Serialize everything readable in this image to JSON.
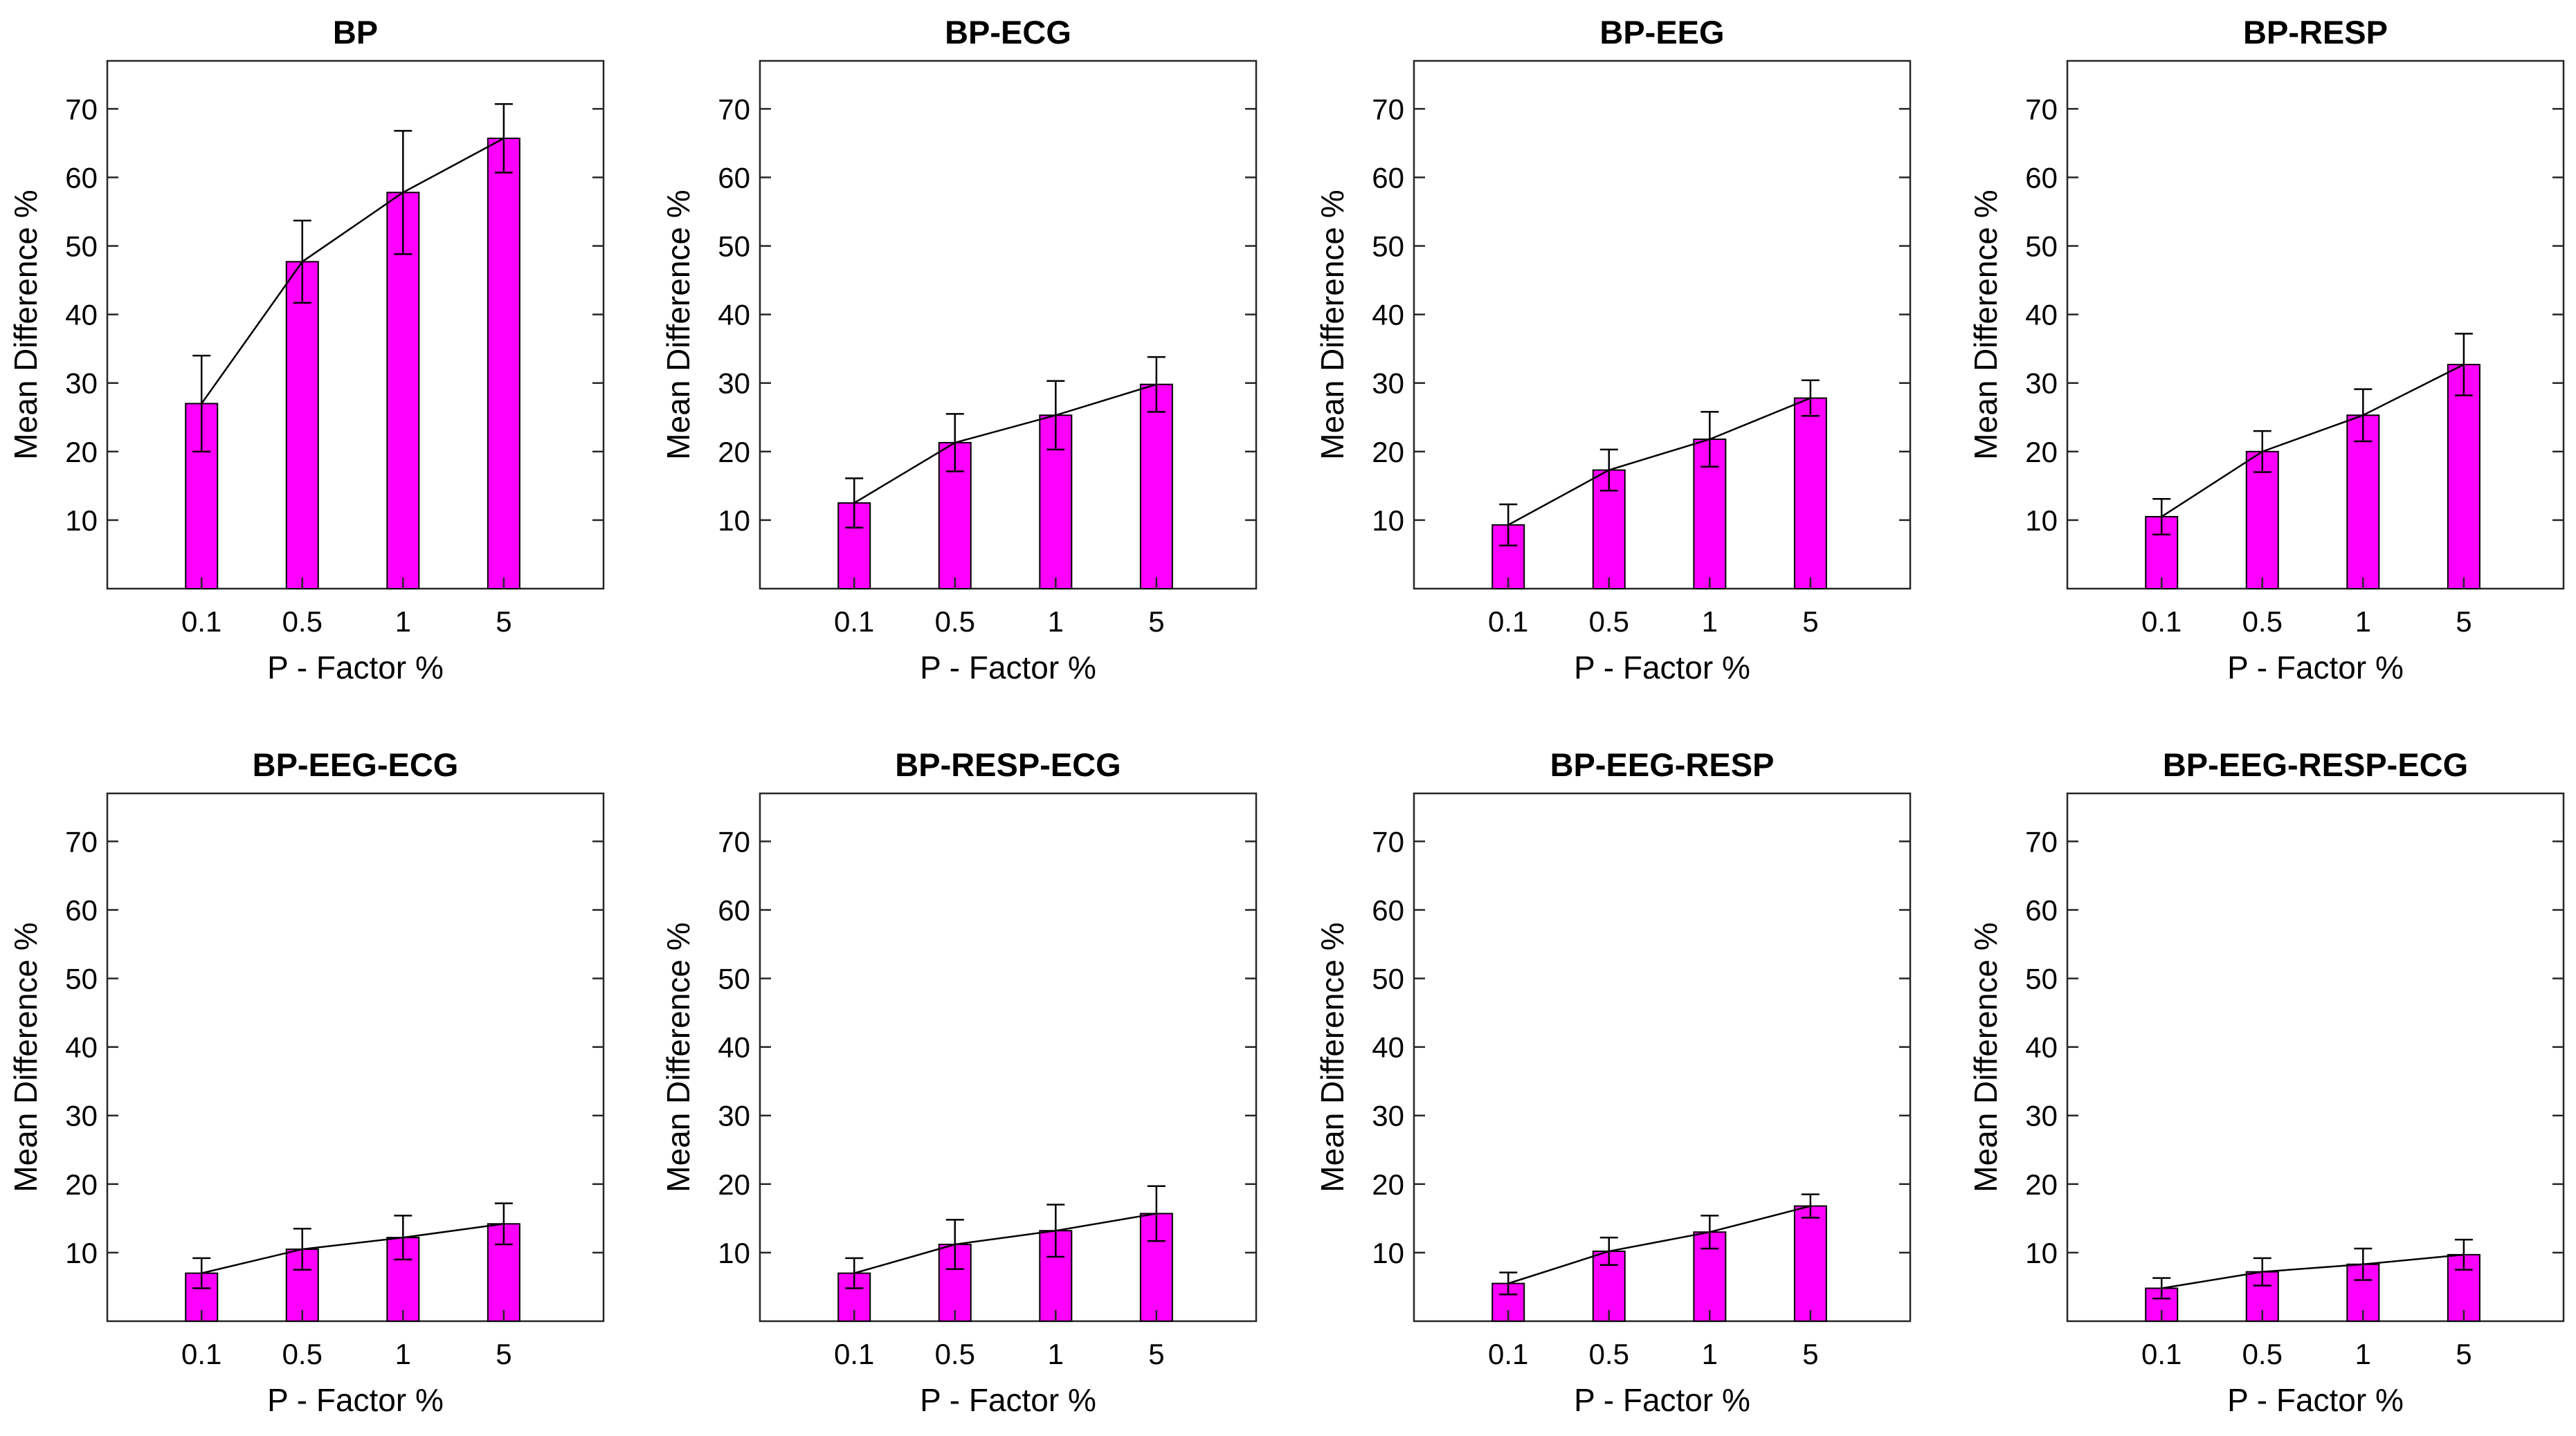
{
  "chart_data": [
    {
      "type": "bar",
      "title": "BP",
      "categories": [
        "0.1",
        "0.5",
        "1",
        "5"
      ],
      "values": [
        27,
        47.7,
        57.8,
        65.7
      ],
      "errors": [
        7,
        6,
        9,
        5
      ],
      "xlabel": "P - Factor %",
      "ylabel": "Mean Difference %",
      "ylim": [
        0,
        77
      ],
      "yticks": [
        10,
        20,
        30,
        40,
        50,
        60,
        70
      ],
      "bar_color": "#ff00ff",
      "line": true
    },
    {
      "type": "bar",
      "title": "BP-ECG",
      "categories": [
        "0.1",
        "0.5",
        "1",
        "5"
      ],
      "values": [
        12.5,
        21.3,
        25.3,
        29.8
      ],
      "errors": [
        3.6,
        4.2,
        5,
        4
      ],
      "xlabel": "P - Factor %",
      "ylabel": "Mean Difference %",
      "ylim": [
        0,
        77
      ],
      "yticks": [
        10,
        20,
        30,
        40,
        50,
        60,
        70
      ],
      "bar_color": "#ff00ff",
      "line": true
    },
    {
      "type": "bar",
      "title": "BP-EEG",
      "categories": [
        "0.1",
        "0.5",
        "1",
        "5"
      ],
      "values": [
        9.3,
        17.3,
        21.8,
        27.8
      ],
      "errors": [
        3,
        3,
        4,
        2.6
      ],
      "xlabel": "P - Factor %",
      "ylabel": "Mean Difference %",
      "ylim": [
        0,
        77
      ],
      "yticks": [
        10,
        20,
        30,
        40,
        50,
        60,
        70
      ],
      "bar_color": "#ff00ff",
      "line": true
    },
    {
      "type": "bar",
      "title": "BP-RESP",
      "categories": [
        "0.1",
        "0.5",
        "1",
        "5"
      ],
      "values": [
        10.5,
        20,
        25.3,
        32.7
      ],
      "errors": [
        2.6,
        3,
        3.8,
        4.5
      ],
      "xlabel": "P - Factor %",
      "ylabel": "Mean Difference %",
      "ylim": [
        0,
        77
      ],
      "yticks": [
        10,
        20,
        30,
        40,
        50,
        60,
        70
      ],
      "bar_color": "#ff00ff",
      "line": true
    },
    {
      "type": "bar",
      "title": "BP-EEG-ECG",
      "categories": [
        "0.1",
        "0.5",
        "1",
        "5"
      ],
      "values": [
        7,
        10.5,
        12.2,
        14.2
      ],
      "errors": [
        2.2,
        3,
        3.2,
        3
      ],
      "xlabel": "P - Factor %",
      "ylabel": "Mean Difference %",
      "ylim": [
        0,
        77
      ],
      "yticks": [
        10,
        20,
        30,
        40,
        50,
        60,
        70
      ],
      "bar_color": "#ff00ff",
      "line": true
    },
    {
      "type": "bar",
      "title": "BP-RESP-ECG",
      "categories": [
        "0.1",
        "0.5",
        "1",
        "5"
      ],
      "values": [
        7,
        11.2,
        13.2,
        15.7
      ],
      "errors": [
        2.2,
        3.6,
        3.8,
        4
      ],
      "xlabel": "P - Factor %",
      "ylabel": "Mean Difference %",
      "ylim": [
        0,
        77
      ],
      "yticks": [
        10,
        20,
        30,
        40,
        50,
        60,
        70
      ],
      "bar_color": "#ff00ff",
      "line": true
    },
    {
      "type": "bar",
      "title": "BP-EEG-RESP",
      "categories": [
        "0.1",
        "0.5",
        "1",
        "5"
      ],
      "values": [
        5.5,
        10.2,
        13,
        16.8
      ],
      "errors": [
        1.6,
        2,
        2.4,
        1.7
      ],
      "xlabel": "P - Factor %",
      "ylabel": "Mean Difference %",
      "ylim": [
        0,
        77
      ],
      "yticks": [
        10,
        20,
        30,
        40,
        50,
        60,
        70
      ],
      "bar_color": "#ff00ff",
      "line": true
    },
    {
      "type": "bar",
      "title": "BP-EEG-RESP-ECG",
      "categories": [
        "0.1",
        "0.5",
        "1",
        "5"
      ],
      "values": [
        4.8,
        7.2,
        8.3,
        9.7
      ],
      "errors": [
        1.5,
        2,
        2.3,
        2.2
      ],
      "xlabel": "P - Factor %",
      "ylabel": "Mean Difference %",
      "ylim": [
        0,
        77
      ],
      "yticks": [
        10,
        20,
        30,
        40,
        50,
        60,
        70
      ],
      "bar_color": "#ff00ff",
      "line": true
    }
  ]
}
